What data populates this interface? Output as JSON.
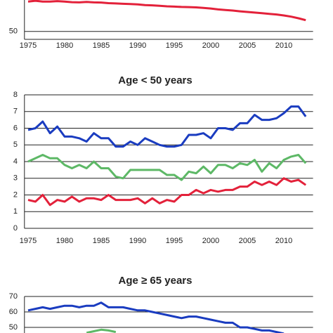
{
  "chart_data": [
    {
      "type": "line",
      "x": [
        1975,
        1976,
        1977,
        1978,
        1979,
        1980,
        1981,
        1982,
        1983,
        1984,
        1985,
        1986,
        1987,
        1988,
        1989,
        1990,
        1991,
        1992,
        1993,
        1994,
        1995,
        1996,
        1997,
        1998,
        1999,
        2000,
        2001,
        2002,
        2003,
        2004,
        2005,
        2006,
        2007,
        2008,
        2009,
        2010,
        2011,
        2012,
        2013
      ],
      "series": [
        {
          "name": "red",
          "color": "#e3213a",
          "values": [
            69,
            69.5,
            69,
            69,
            69.3,
            69,
            68.6,
            68.5,
            68.8,
            68.5,
            68.4,
            68,
            67.8,
            67.6,
            67.4,
            67.2,
            66.8,
            66.6,
            66.3,
            66,
            65.8,
            65.6,
            65.5,
            65.3,
            65,
            64.6,
            64,
            63.6,
            63.3,
            62.8,
            62.4,
            62,
            61.6,
            61.2,
            60.8,
            60.2,
            59.4,
            58.4,
            57.2
          ]
        }
      ],
      "xlim": [
        1974.5,
        2014
      ],
      "xticks": [
        1975,
        1980,
        1985,
        1990,
        1995,
        2000,
        2005,
        2010
      ],
      "ylim": [
        45,
        70
      ],
      "yticks": [
        50
      ],
      "grid": true
    },
    {
      "type": "line",
      "title": "Age < 50 years",
      "x": [
        1975,
        1976,
        1977,
        1978,
        1979,
        1980,
        1981,
        1982,
        1983,
        1984,
        1985,
        1986,
        1987,
        1988,
        1989,
        1990,
        1991,
        1992,
        1993,
        1994,
        1995,
        1996,
        1997,
        1998,
        1999,
        2000,
        2001,
        2002,
        2003,
        2004,
        2005,
        2006,
        2007,
        2008,
        2009,
        2010,
        2011,
        2012,
        2013
      ],
      "series": [
        {
          "name": "blue",
          "color": "#1a3cc0",
          "values": [
            5.9,
            6.0,
            6.4,
            5.7,
            6.1,
            5.5,
            5.5,
            5.4,
            5.2,
            5.7,
            5.4,
            5.4,
            4.9,
            4.9,
            5.2,
            5.0,
            5.4,
            5.2,
            5.0,
            4.9,
            4.9,
            5.0,
            5.6,
            5.6,
            5.7,
            5.4,
            6.0,
            6.0,
            5.9,
            6.3,
            6.3,
            6.8,
            6.5,
            6.5,
            6.6,
            6.9,
            7.3,
            7.3,
            6.7
          ]
        },
        {
          "name": "green",
          "color": "#5db866",
          "values": [
            4.0,
            4.2,
            4.4,
            4.2,
            4.2,
            3.8,
            3.6,
            3.8,
            3.6,
            4.0,
            3.6,
            3.6,
            3.1,
            3.0,
            3.5,
            3.5,
            3.5,
            3.5,
            3.5,
            3.2,
            3.2,
            2.9,
            3.4,
            3.3,
            3.7,
            3.3,
            3.8,
            3.8,
            3.6,
            3.9,
            3.8,
            4.1,
            3.4,
            3.9,
            3.6,
            4.1,
            4.3,
            4.4,
            3.9
          ]
        },
        {
          "name": "red",
          "color": "#e3213a",
          "values": [
            1.7,
            1.6,
            2.0,
            1.4,
            1.7,
            1.6,
            1.9,
            1.6,
            1.8,
            1.8,
            1.7,
            2.0,
            1.7,
            1.7,
            1.7,
            1.8,
            1.5,
            1.8,
            1.5,
            1.7,
            1.6,
            2.0,
            2.0,
            2.3,
            2.1,
            2.3,
            2.2,
            2.3,
            2.3,
            2.5,
            2.5,
            2.8,
            2.6,
            2.8,
            2.6,
            3.0,
            2.8,
            2.9,
            2.6
          ]
        }
      ],
      "xlim": [
        1974.5,
        2014
      ],
      "xticks": [
        1975,
        1980,
        1985,
        1990,
        1995,
        2000,
        2005,
        2010
      ],
      "ylim": [
        0,
        8
      ],
      "yticks": [
        0,
        1,
        2,
        3,
        4,
        5,
        6,
        7,
        8
      ],
      "grid": true
    },
    {
      "type": "line",
      "title": "Age ≥ 65 years",
      "x": [
        1975,
        1976,
        1977,
        1978,
        1979,
        1980,
        1981,
        1982,
        1983,
        1984,
        1985,
        1986,
        1987,
        1988,
        1989,
        1990,
        1991,
        1992,
        1993,
        1994,
        1995,
        1996,
        1997,
        1998,
        1999,
        2000,
        2001,
        2002,
        2003,
        2004,
        2005,
        2006,
        2007,
        2008,
        2009,
        2010,
        2011,
        2012,
        2013
      ],
      "series": [
        {
          "name": "blue",
          "color": "#1a3cc0",
          "values": [
            61,
            62,
            63,
            62,
            63,
            64,
            64,
            63,
            64,
            64,
            66,
            63,
            63,
            63,
            62,
            61,
            61,
            60,
            59,
            58,
            57,
            56,
            57,
            57,
            56,
            55,
            54,
            53,
            53,
            50,
            50,
            49,
            48,
            48,
            47,
            46,
            null,
            null,
            null
          ]
        },
        {
          "name": "green",
          "color": "#5db866",
          "values": [
            null,
            null,
            null,
            null,
            null,
            null,
            null,
            null,
            46.5,
            47.5,
            48.5,
            48,
            47,
            null,
            null,
            null,
            null,
            null,
            null,
            null,
            null,
            null,
            null,
            null,
            null,
            null,
            null,
            null,
            null,
            null,
            null,
            null,
            null,
            null,
            null,
            null,
            null,
            null,
            null
          ]
        }
      ],
      "xlim": [
        1974.5,
        2014
      ],
      "ylim": [
        46,
        70
      ],
      "yticks": [
        50,
        60,
        70
      ],
      "grid": true
    }
  ]
}
